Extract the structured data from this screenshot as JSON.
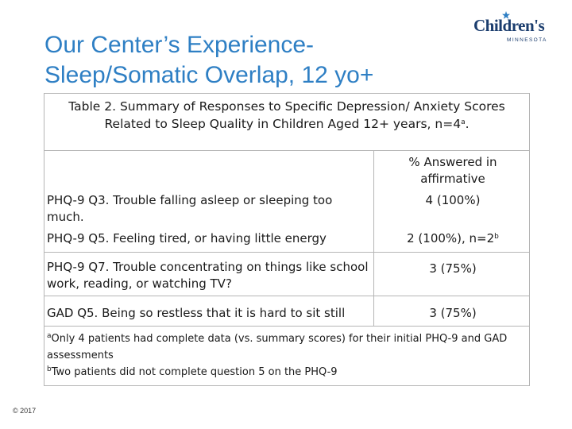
{
  "slide": {
    "title_line1": "Our Center’s Experience-",
    "title_line2": "Sleep/Somatic Overlap, 12 yo+",
    "copyright": "© 2017"
  },
  "logo": {
    "brand": "Children's",
    "sub": "MINNESOTA",
    "accent_color": "#2e7fc4",
    "brand_color": "#1b3d6e"
  },
  "table": {
    "caption_line1": "Table 2. Summary of Responses to Specific Depression/ Anxiety Scores",
    "caption_line2_prefix": "Related to Sleep Quality in Children Aged 12+ years, n=4",
    "caption_line2_sup": "a",
    "caption_line2_suffix": ".",
    "column_header": "% Answered in affirmative",
    "rows": [
      {
        "item": "PHQ-9 Q3. Trouble falling asleep or sleeping too much.",
        "value": "4 (100%)"
      },
      {
        "item": "PHQ-9 Q5. Feeling tired, or having little energy",
        "value_prefix": "2 (100%), n=2",
        "value_sup": "b"
      },
      {
        "item": "PHQ-9 Q7. Trouble concentrating on things like school work, reading, or watching TV?",
        "value": "3 (75%)"
      },
      {
        "item": "GAD Q5. Being so restless that it is hard to sit still",
        "value": "3 (75%)"
      }
    ],
    "footnote_a_mark": "a",
    "footnote_a": "Only 4 patients had complete data (vs. summary scores) for their initial PHQ-9 and GAD assessments",
    "footnote_b_mark": "b",
    "footnote_b": "Two patients did not complete question 5 on the PHQ-9"
  }
}
